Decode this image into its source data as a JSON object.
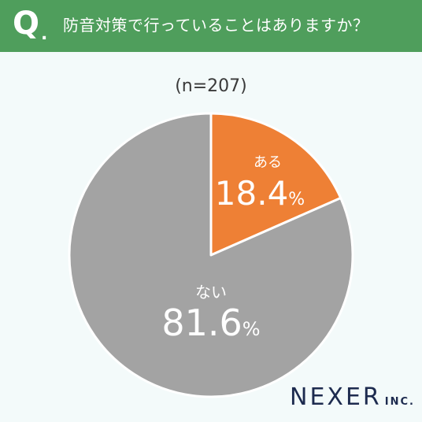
{
  "header": {
    "q_label": "Q",
    "q_dot": ".",
    "question": "防音対策で行っていることはありますか？"
  },
  "sample_size": "(n=207)",
  "colors": {
    "header_bg": "#4f9e5c",
    "background": "#f3fafa",
    "slice_yes": "#ee8035",
    "slice_no": "#a3a3a3",
    "logo": "#1d2b4f"
  },
  "chart_data": {
    "type": "pie",
    "title": "防音対策で行っていることはありますか？",
    "subtitle": "(n=207)",
    "slices": [
      {
        "label": "ある",
        "value": 18.4,
        "value_text": "18.4",
        "unit": "%",
        "color": "#ee8035"
      },
      {
        "label": "ない",
        "value": 81.6,
        "value_text": "81.6",
        "unit": "%",
        "color": "#a3a3a3"
      }
    ],
    "start_angle": "12 o'clock",
    "direction": "clockwise"
  },
  "logo": {
    "main": "NEXER",
    "sub": "INC."
  }
}
